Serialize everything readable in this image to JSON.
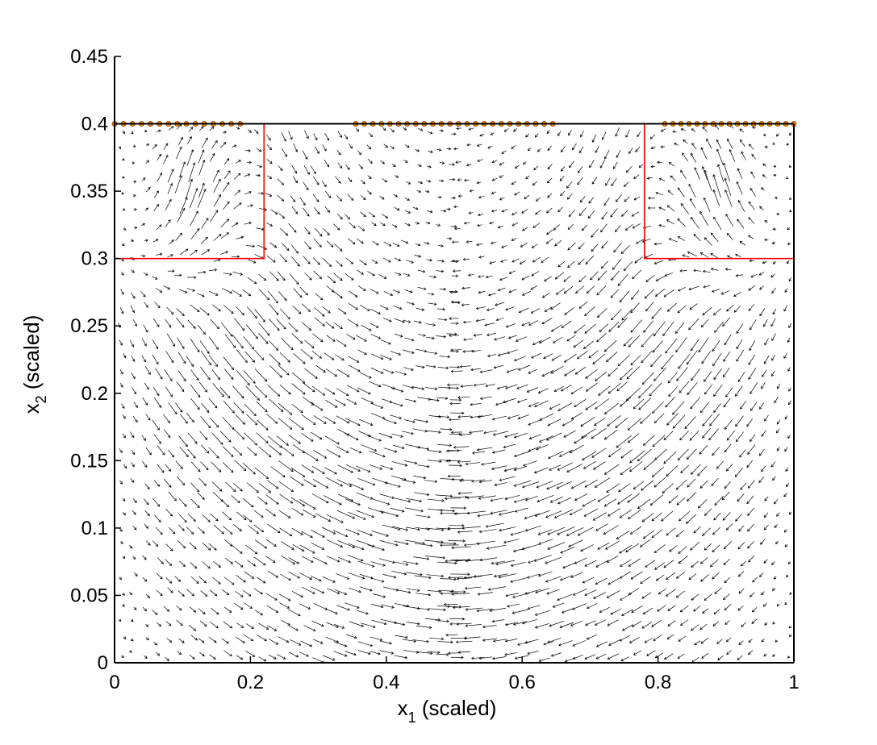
{
  "chart_data": {
    "type": "quiver",
    "xlabel": "x_1 (scaled)",
    "ylabel": "x_2 (scaled)",
    "xlabel_parts": {
      "base": "x",
      "sub": "1",
      "rest": " (scaled)"
    },
    "ylabel_parts": {
      "base": "x",
      "sub": "2",
      "rest": " (scaled)"
    },
    "xlim": [
      0,
      1
    ],
    "ylim": [
      0,
      0.45
    ],
    "x_ticks": [
      0,
      0.2,
      0.4,
      0.6,
      0.8,
      1
    ],
    "x_tick_labels": [
      "0",
      "0.2",
      "0.4",
      "0.6",
      "0.8",
      "1"
    ],
    "y_ticks": [
      0,
      0.05,
      0.1,
      0.15,
      0.2,
      0.25,
      0.3,
      0.35,
      0.4,
      0.45
    ],
    "y_tick_labels": [
      "0",
      "0.05",
      "0.1",
      "0.15",
      "0.2",
      "0.25",
      "0.3",
      "0.35",
      "0.4",
      "0.45"
    ],
    "grid": false,
    "domain_top": 0.4,
    "regions": [
      {
        "x": [
          0,
          0.22
        ],
        "y": [
          0.3,
          0.4
        ]
      },
      {
        "x": [
          0.78,
          1.0
        ],
        "y": [
          0.3,
          0.4
        ]
      }
    ],
    "boundary_points": {
      "y": 0.4,
      "segments": [
        {
          "x_start": 0.0,
          "x_end": 0.185,
          "count": 15
        },
        {
          "x_start": 0.355,
          "x_end": 0.645,
          "count": 24
        },
        {
          "x_start": 0.81,
          "x_end": 1.0,
          "count": 17
        }
      ]
    },
    "vector_field": "dense quiver of arrows showing flow circulating from the upper-left and upper-right regions down through the domain",
    "colors": {
      "arrow": "#000000",
      "region_outline": "#ff0000",
      "point_fill": "#ff8c00",
      "point_edge": "#8b3a00",
      "axes": "#000000"
    }
  }
}
